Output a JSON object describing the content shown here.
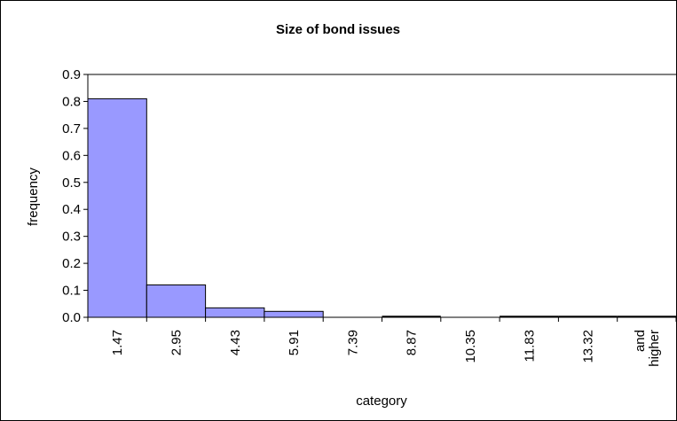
{
  "chart_data": {
    "type": "bar",
    "title": "Size of bond issues",
    "xlabel": "category",
    "ylabel": "frequency",
    "categories": [
      "1.47",
      "2.95",
      "4.43",
      "5.91",
      "7.39",
      "8.87",
      "10.35",
      "11.83",
      "13.32",
      "and higher"
    ],
    "values": [
      0.81,
      0.12,
      0.035,
      0.022,
      0.0,
      0.002,
      0.0,
      0.002,
      0.002,
      0.002
    ],
    "ylim": [
      0,
      0.9
    ],
    "yticks": [
      "0.0",
      "0.1",
      "0.2",
      "0.3",
      "0.4",
      "0.5",
      "0.6",
      "0.7",
      "0.8",
      "0.9"
    ],
    "bar_color": "#9999ff",
    "bar_edge_color": "#000000",
    "gridlines": "horizontal, at 0.9 only",
    "legend": "none"
  }
}
